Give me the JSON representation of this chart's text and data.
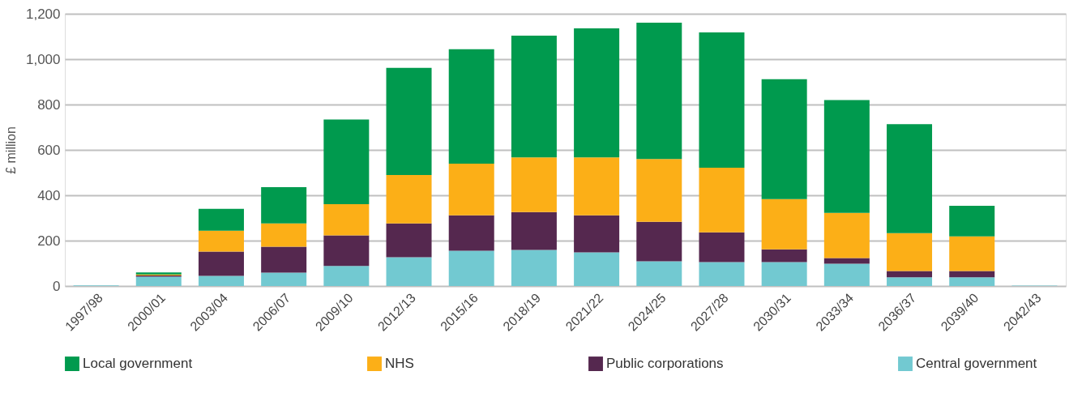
{
  "chart_data": {
    "type": "bar",
    "stacked": true,
    "ylabel": "£ million",
    "categories": [
      "1997/98",
      "2000/01",
      "2003/04",
      "2006/07",
      "2009/10",
      "2012/13",
      "2015/16",
      "2018/19",
      "2021/22",
      "2024/25",
      "2027/28",
      "2030/31",
      "2033/34",
      "2036/37",
      "2039/40",
      "2042/43"
    ],
    "series": [
      {
        "name": "Central government",
        "color": "#72c9d1",
        "values": [
          3,
          41,
          45,
          59,
          88,
          127,
          155,
          159,
          148,
          109,
          105,
          105,
          98,
          38,
          38,
          2
        ]
      },
      {
        "name": "Public corporations",
        "color": "#55284f",
        "values": [
          0,
          5,
          107,
          114,
          135,
          149,
          157,
          167,
          164,
          174,
          132,
          57,
          25,
          28,
          28,
          0
        ]
      },
      {
        "name": "NHS",
        "color": "#fcaf17",
        "values": [
          0,
          5,
          92,
          103,
          138,
          213,
          227,
          241,
          255,
          277,
          284,
          221,
          199,
          167,
          153,
          0
        ]
      },
      {
        "name": "Local government",
        "color": "#009a4e",
        "values": [
          0,
          9,
          96,
          160,
          373,
          473,
          505,
          537,
          569,
          601,
          597,
          529,
          498,
          480,
          135,
          0
        ]
      }
    ],
    "ylim": [
      0,
      1200
    ],
    "yticks": [
      0,
      200,
      400,
      600,
      800,
      {
        "value": 1000,
        "label": "1,000"
      },
      {
        "value": 1200,
        "label": "1,200"
      }
    ],
    "grid": "y",
    "legend": "bottom"
  }
}
